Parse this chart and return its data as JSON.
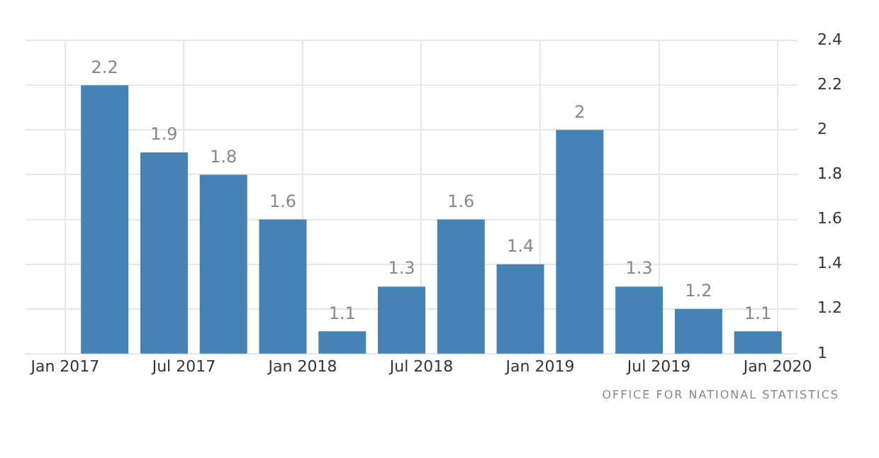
{
  "chart_data": {
    "type": "bar",
    "x": [
      "2017-03",
      "2017-06",
      "2017-09",
      "2017-12",
      "2018-03",
      "2018-06",
      "2018-09",
      "2018-12",
      "2019-03",
      "2019-06",
      "2019-09",
      "2019-12"
    ],
    "values": [
      2.2,
      1.9,
      1.8,
      1.6,
      1.1,
      1.3,
      1.6,
      1.4,
      2,
      1.3,
      1.2,
      1.1
    ],
    "color": "#4682b4",
    "data_labels": true,
    "xlim": [
      "2016-11",
      "2020-02"
    ],
    "xticks": [
      {
        "value": "2017-01",
        "label": "Jan 2017"
      },
      {
        "value": "2017-07",
        "label": "Jul 2017"
      },
      {
        "value": "2018-01",
        "label": "Jan 2018"
      },
      {
        "value": "2018-07",
        "label": "Jul 2018"
      },
      {
        "value": "2019-01",
        "label": "Jan 2019"
      },
      {
        "value": "2019-07",
        "label": "Jul 2019"
      },
      {
        "value": "2020-01",
        "label": "Jan 2020"
      }
    ],
    "ylim": [
      1,
      2.4
    ],
    "yticks": [
      1,
      1.2,
      1.4,
      1.6,
      1.8,
      2,
      2.2,
      2.4
    ],
    "grid": true,
    "annotations": [
      "OFFICE FOR NATIONAL STATISTICS"
    ]
  }
}
